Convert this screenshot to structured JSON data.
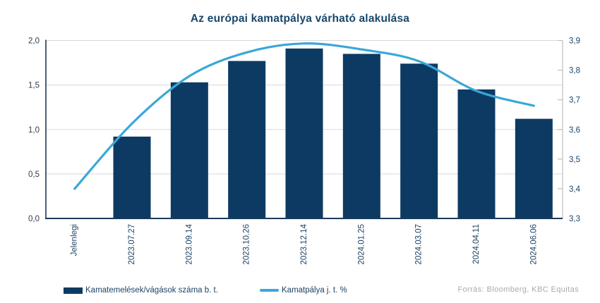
{
  "title": "Az európai kamatpálya várható alakulása",
  "source": "Forrás: Bloomberg, KBC Equitas",
  "legend": [
    {
      "label": "Kamatemelések/vágások száma b. t.",
      "swatch": "bar-swatch",
      "color": "#0d3a62"
    },
    {
      "label": "Kamatpálya j. t. %",
      "swatch": "line-swatch",
      "color": "#3aa7d8"
    }
  ],
  "chart_data": {
    "type": "bar",
    "subtype": "combo bar + smooth line, dual y-axes",
    "title": "Az európai kamatpálya várható alakulása",
    "categories": [
      "Jelenlegi",
      "2023.07.27",
      "2023.09.14",
      "2023.10.26",
      "2023.12.14",
      "2024.01.25",
      "2024.03.07",
      "2024.04.11",
      "2024.06.06"
    ],
    "series": [
      {
        "name": "Kamatemelések/vágások száma b. t.",
        "type": "bar",
        "axis": "left",
        "color": "#0d3a62",
        "values": [
          0,
          0.92,
          1.53,
          1.77,
          1.91,
          1.85,
          1.74,
          1.45,
          1.12
        ]
      },
      {
        "name": "Kamatpálya j. t. %",
        "type": "line",
        "axis": "right",
        "color": "#3aa7d8",
        "values": [
          3.4,
          3.62,
          3.78,
          3.86,
          3.89,
          3.87,
          3.83,
          3.73,
          3.68
        ]
      }
    ],
    "left_axis": {
      "min": 0,
      "max": 2,
      "step": 0.5,
      "tick_labels": [
        "0,0",
        "0,5",
        "1,0",
        "1,5",
        "2,0"
      ]
    },
    "right_axis": {
      "min": 3.3,
      "max": 3.9,
      "step": 0.1,
      "tick_labels": [
        "3,3",
        "3,4",
        "3,5",
        "3,6",
        "3,7",
        "3,8",
        "3,9"
      ]
    },
    "grid": "horizontal gridlines at left-axis steps",
    "legend_position": "bottom",
    "x_tick_label_rotation": -90
  },
  "colors": {
    "bar": "#0d3a62",
    "line": "#3aa7d8",
    "title": "#17476b",
    "grid": "#d9d9d9",
    "axis_dark": "#1c3a5a",
    "axis_right": "#bfbfbf",
    "left_tick_text": "#2e3e4e",
    "right_tick_text": "#1d4365",
    "x_tick_text": "#1d4365",
    "source_text": "#a9a9a9"
  }
}
